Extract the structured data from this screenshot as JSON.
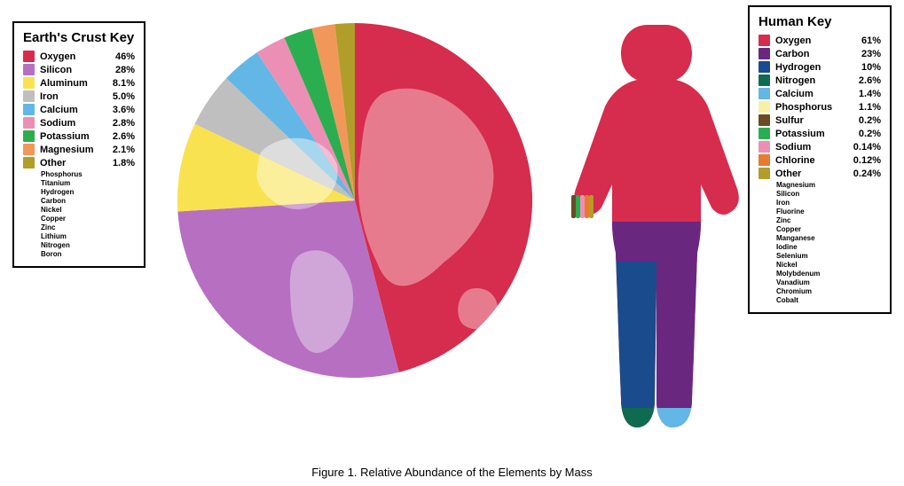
{
  "caption": "Figure 1. Relative Abundance of the Elements by Mass",
  "earth_legend": {
    "title": "Earth's Crust Key",
    "rows": [
      {
        "label": "Oxygen",
        "pct": "46%",
        "color": "#d62c4d"
      },
      {
        "label": "Silicon",
        "pct": "28%",
        "color": "#b76fc2"
      },
      {
        "label": "Aluminum",
        "pct": "8.1%",
        "color": "#f9e24f"
      },
      {
        "label": "Iron",
        "pct": "5.0%",
        "color": "#bfbfbf"
      },
      {
        "label": "Calcium",
        "pct": "3.6%",
        "color": "#63b7e6"
      },
      {
        "label": "Sodium",
        "pct": "2.8%",
        "color": "#eb8fb5"
      },
      {
        "label": "Potassium",
        "pct": "2.6%",
        "color": "#2bae4f"
      },
      {
        "label": "Magnesium",
        "pct": "2.1%",
        "color": "#f2975a"
      },
      {
        "label": "Other",
        "pct": "1.8%",
        "color": "#b19d2a"
      }
    ],
    "other_sublist": [
      "Phosphorus",
      "Titanium",
      "Hydrogen",
      "Carbon",
      "Nickel",
      "Copper",
      "Zinc",
      "Lithium",
      "Nitrogen",
      "Boron"
    ]
  },
  "human_legend": {
    "title": "Human Key",
    "rows": [
      {
        "label": "Oxygen",
        "pct": "61%",
        "color": "#d62c4d"
      },
      {
        "label": "Carbon",
        "pct": "23%",
        "color": "#6a2780"
      },
      {
        "label": "Hydrogen",
        "pct": "10%",
        "color": "#1a4b8c"
      },
      {
        "label": "Nitrogen",
        "pct": "2.6%",
        "color": "#0f6b4f"
      },
      {
        "label": "Calcium",
        "pct": "1.4%",
        "color": "#63b7e6"
      },
      {
        "label": "Phosphorus",
        "pct": "1.1%",
        "color": "#f6f1a7"
      },
      {
        "label": "Sulfur",
        "pct": "0.2%",
        "color": "#6b4a24"
      },
      {
        "label": "Potassium",
        "pct": "0.2%",
        "color": "#2bae4f"
      },
      {
        "label": "Sodium",
        "pct": "0.14%",
        "color": "#eb8fb5"
      },
      {
        "label": "Chlorine",
        "pct": "0.12%",
        "color": "#e67a2e"
      },
      {
        "label": "Other",
        "pct": "0.24%",
        "color": "#b19d2a"
      }
    ],
    "other_sublist": [
      "Magnesium",
      "Silicon",
      "Iron",
      "Fluorine",
      "Zinc",
      "Copper",
      "Manganese",
      "Iodine",
      "Selenium",
      "Nickel",
      "Molybdenum",
      "Vanadium",
      "Chromium",
      "Cobalt"
    ]
  },
  "earth_pie": {
    "type": "pie",
    "slices": [
      {
        "value": 46,
        "color": "#d62c4d"
      },
      {
        "value": 28,
        "color": "#b76fc2"
      },
      {
        "value": 8.1,
        "color": "#f9e24f"
      },
      {
        "value": 5.0,
        "color": "#bfbfbf"
      },
      {
        "value": 3.6,
        "color": "#63b7e6"
      },
      {
        "value": 2.8,
        "color": "#eb8fb5"
      },
      {
        "value": 2.6,
        "color": "#2bae4f"
      },
      {
        "value": 2.1,
        "color": "#f2975a"
      },
      {
        "value": 1.8,
        "color": "#b19d2a"
      }
    ],
    "continent_overlay_colors": [
      "#e77b8e",
      "#d0a5d8",
      "#fbef9c",
      "#dddddd",
      "#a6d7ee",
      "#f4bdd4",
      "#78d192",
      "#f7bd99",
      "#d0c576"
    ],
    "radius": 200,
    "start_angle_deg": -90,
    "direction": "cw"
  },
  "human_figure": {
    "type": "infographic",
    "silhouette_fill": "#d62c4d",
    "band_colors": {
      "torso_top": "#d62c4d",
      "pelvis": "#6a2780",
      "leg_left": "#1a4b8c",
      "leg_right": "#6a2780",
      "foot_left": "#0f6b4f",
      "foot_right_a": "#63b7e6",
      "foot_right_b": "#f6f1a7"
    },
    "hand_stripes": [
      "#6b4a24",
      "#2bae4f",
      "#eb8fb5",
      "#e67a2e",
      "#b19d2a"
    ]
  }
}
